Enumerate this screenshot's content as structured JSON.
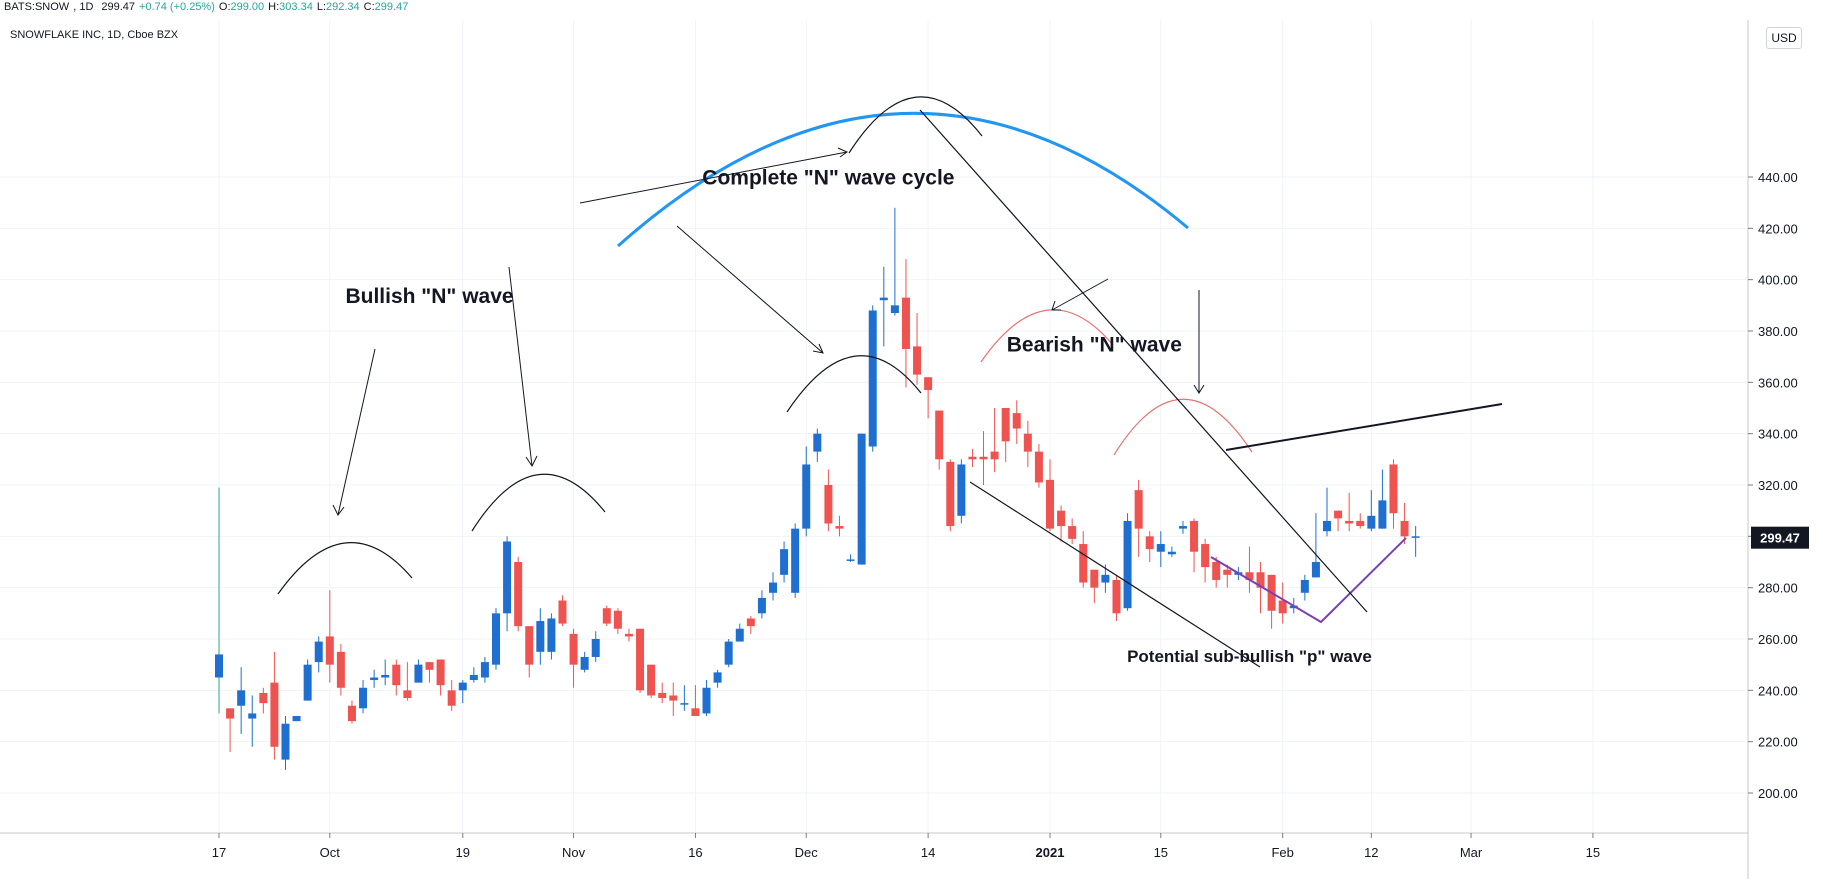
{
  "header": {
    "symbol": "BATS:SNOW",
    "interval": "1D",
    "last": "299.47",
    "change": "+0.74 (+0.25%)",
    "open_label": "O:",
    "open": "299.00",
    "high_label": "H:",
    "high": "303.34",
    "low_label": "L:",
    "low": "292.34",
    "close_label": "C:",
    "close": "299.47"
  },
  "chart_subtitle": "SNOWFLAKE INC, 1D, Cboe BZX",
  "currency": "USD",
  "colors": {
    "up": "#1e6fd0",
    "down": "#ef5350",
    "arc_blue": "#2196f3",
    "wave_red": "#e57373",
    "purple": "#7b3fb5",
    "line": "#131722"
  },
  "chart_data": {
    "type": "candlestick",
    "y_axis": {
      "min": 190,
      "max": 445,
      "ticks": [
        "200.00",
        "220.00",
        "240.00",
        "260.00",
        "280.00",
        "300.00",
        "320.00",
        "340.00",
        "360.00",
        "380.00",
        "400.00",
        "420.00",
        "440.00"
      ],
      "last_price_label": "299.47"
    },
    "x_axis": {
      "ticks": [
        {
          "label": "17",
          "day": 0
        },
        {
          "label": "Oct",
          "day": 10
        },
        {
          "label": "19",
          "day": 22
        },
        {
          "label": "Nov",
          "day": 32
        },
        {
          "label": "16",
          "day": 43
        },
        {
          "label": "Dec",
          "day": 53
        },
        {
          "label": "14",
          "day": 64
        },
        {
          "label": "2021",
          "day": 75,
          "bold": true
        },
        {
          "label": "15",
          "day": 85
        },
        {
          "label": "Feb",
          "day": 96
        },
        {
          "label": "12",
          "day": 104
        },
        {
          "label": "Mar",
          "day": 113
        },
        {
          "label": "15",
          "day": 124
        }
      ]
    },
    "candles": [
      [
        0,
        245,
        254,
        231,
        319
      ],
      [
        1,
        233,
        229,
        216,
        233
      ],
      [
        2,
        234,
        240,
        223,
        249
      ],
      [
        3,
        229,
        231,
        218,
        238
      ],
      [
        4,
        239,
        235,
        231,
        241
      ],
      [
        5,
        243,
        218,
        213,
        255
      ],
      [
        6,
        213,
        227,
        209,
        230
      ],
      [
        7,
        228,
        230,
        228,
        230
      ],
      [
        8,
        236,
        250,
        236,
        252
      ],
      [
        9,
        251,
        259,
        247,
        261
      ],
      [
        10,
        261,
        250,
        243,
        279
      ],
      [
        11,
        255,
        241,
        238,
        258
      ],
      [
        12,
        234,
        228,
        227,
        236
      ],
      [
        13,
        233,
        241,
        231,
        244
      ],
      [
        14,
        244,
        245,
        241,
        248
      ],
      [
        15,
        245,
        246,
        242,
        252
      ],
      [
        16,
        250,
        242,
        238,
        252
      ],
      [
        17,
        240,
        237,
        236,
        251
      ],
      [
        18,
        243,
        250,
        243,
        252
      ],
      [
        19,
        251,
        248,
        243,
        251
      ],
      [
        20,
        252,
        242,
        238,
        252
      ],
      [
        21,
        240,
        234,
        232,
        244
      ],
      [
        22,
        240,
        243,
        235,
        244
      ],
      [
        23,
        244,
        246,
        243,
        249
      ],
      [
        24,
        245,
        251,
        243,
        253
      ],
      [
        25,
        250,
        270,
        248,
        272
      ],
      [
        26,
        270,
        298,
        263,
        300
      ],
      [
        27,
        290,
        265,
        263,
        292
      ],
      [
        28,
        265,
        250,
        245,
        265
      ],
      [
        29,
        255,
        267,
        250,
        272
      ],
      [
        30,
        255,
        268,
        252,
        270
      ],
      [
        31,
        275,
        266,
        265,
        277
      ],
      [
        32,
        262,
        250,
        241,
        264
      ],
      [
        33,
        248,
        253,
        247,
        255
      ],
      [
        34,
        253,
        260,
        251,
        263
      ],
      [
        35,
        272,
        266,
        265,
        273
      ],
      [
        36,
        271,
        264,
        262,
        272
      ],
      [
        37,
        262,
        261,
        259,
        264
      ],
      [
        38,
        264,
        240,
        239,
        264
      ],
      [
        39,
        250,
        238,
        237,
        250
      ],
      [
        40,
        239,
        237,
        235,
        243
      ],
      [
        41,
        238,
        236,
        230,
        243
      ],
      [
        42,
        235,
        235,
        232,
        242
      ],
      [
        43,
        233,
        230,
        230,
        242
      ],
      [
        44,
        231,
        241,
        230,
        244
      ],
      [
        45,
        243,
        247,
        241,
        248
      ],
      [
        46,
        250,
        259,
        249,
        260
      ],
      [
        47,
        259,
        264,
        259,
        266
      ],
      [
        48,
        268,
        265,
        262,
        269
      ],
      [
        49,
        270,
        276,
        268,
        279
      ],
      [
        50,
        278,
        282,
        275,
        286
      ],
      [
        51,
        285,
        295,
        282,
        298
      ],
      [
        52,
        278,
        303,
        276,
        305
      ],
      [
        53,
        303,
        328,
        300,
        335
      ],
      [
        54,
        333,
        340,
        329,
        342
      ],
      [
        55,
        320,
        305,
        302,
        326
      ],
      [
        56,
        304,
        303,
        300,
        308
      ],
      [
        57,
        291,
        291,
        290,
        293
      ],
      [
        58,
        289,
        340,
        289,
        340
      ],
      [
        59,
        335,
        388,
        333,
        390
      ],
      [
        60,
        392,
        393,
        374,
        405
      ],
      [
        61,
        387,
        390,
        386,
        428
      ],
      [
        62,
        393,
        373,
        358,
        408
      ],
      [
        63,
        374,
        363,
        359,
        387
      ],
      [
        64,
        362,
        357,
        346,
        362
      ],
      [
        65,
        349,
        330,
        326,
        349
      ],
      [
        66,
        329,
        304,
        302,
        330
      ],
      [
        67,
        308,
        328,
        305,
        330
      ],
      [
        68,
        331,
        330,
        327,
        334
      ],
      [
        69,
        331,
        330,
        320,
        341
      ],
      [
        70,
        333,
        330,
        325,
        350
      ],
      [
        71,
        350,
        337,
        329,
        350
      ],
      [
        72,
        348,
        342,
        336,
        353
      ],
      [
        73,
        340,
        333,
        327,
        345
      ],
      [
        74,
        333,
        321,
        319,
        336
      ],
      [
        75,
        322,
        303,
        302,
        330
      ],
      [
        76,
        310,
        304,
        298,
        312
      ],
      [
        77,
        304,
        299,
        297,
        307
      ],
      [
        78,
        297,
        282,
        280,
        302
      ],
      [
        79,
        287,
        280,
        274,
        287
      ],
      [
        80,
        282,
        285,
        278,
        289
      ],
      [
        81,
        283,
        270,
        267,
        285
      ],
      [
        82,
        272,
        306,
        271,
        309
      ],
      [
        83,
        318,
        303,
        292,
        322
      ],
      [
        84,
        300,
        295,
        290,
        302
      ],
      [
        85,
        294,
        297,
        288,
        302
      ],
      [
        86,
        293,
        294,
        292,
        296
      ],
      [
        87,
        303,
        304,
        301,
        306
      ],
      [
        88,
        306,
        294,
        286,
        307
      ],
      [
        89,
        297,
        288,
        282,
        299
      ],
      [
        90,
        290,
        283,
        280,
        292
      ],
      [
        91,
        287,
        285,
        280,
        289
      ],
      [
        92,
        285,
        286,
        283,
        288
      ],
      [
        93,
        286,
        283,
        278,
        296
      ],
      [
        94,
        286,
        280,
        270,
        290
      ],
      [
        95,
        285,
        271,
        264,
        285
      ],
      [
        96,
        275,
        270,
        266,
        282
      ],
      [
        97,
        272,
        273,
        270,
        276
      ],
      [
        98,
        278,
        283,
        275,
        285
      ],
      [
        99,
        284,
        290,
        284,
        309
      ],
      [
        100,
        302,
        306,
        300,
        319
      ],
      [
        101,
        310,
        307,
        302,
        310
      ],
      [
        102,
        306,
        305,
        302,
        317
      ],
      [
        103,
        306,
        304,
        303,
        309
      ],
      [
        104,
        303,
        308,
        302,
        318
      ],
      [
        105,
        303,
        314,
        303,
        326
      ],
      [
        106,
        328,
        309,
        303,
        330
      ],
      [
        107,
        306,
        300,
        297,
        313
      ],
      [
        108,
        300,
        300,
        292,
        304
      ]
    ],
    "annotations": [
      {
        "text": "Complete \"N\" wave cycle",
        "x_day": 55,
        "y": 437
      },
      {
        "text": "Bullish \"N\" wave",
        "x_day": 19,
        "y": 391
      },
      {
        "text": "Bearish \"N\" wave",
        "x_day": 79,
        "y": 372
      },
      {
        "text": "Potential sub-bullish \"p\" wave",
        "x_day": 93,
        "y": 251
      }
    ]
  }
}
